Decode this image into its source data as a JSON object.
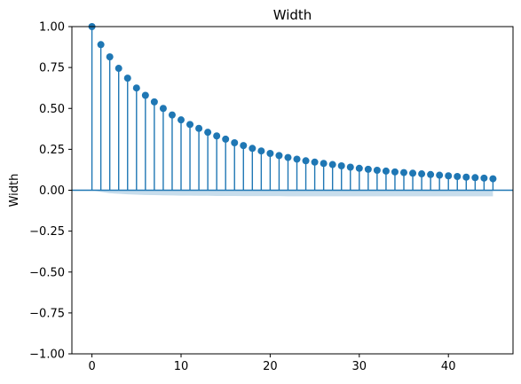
{
  "chart_data": {
    "type": "stem",
    "title": "Width",
    "ylabel": "Width",
    "xlabel": "",
    "xlim": [
      -2.25,
      47.25
    ],
    "ylim": [
      -1.0,
      1.0
    ],
    "xticks": [
      0,
      10,
      20,
      30,
      40
    ],
    "xtick_labels": [
      "0",
      "10",
      "20",
      "30",
      "40"
    ],
    "yticks": [
      -1.0,
      -0.75,
      -0.5,
      -0.25,
      0.0,
      0.25,
      0.5,
      0.75,
      1.0
    ],
    "ytick_labels": [
      "−1.00",
      "−0.75",
      "−0.50",
      "−0.25",
      "0.00",
      "0.25",
      "0.50",
      "0.75",
      "1.00"
    ],
    "grid": false,
    "x": [
      0,
      1,
      2,
      3,
      4,
      5,
      6,
      7,
      8,
      9,
      10,
      11,
      12,
      13,
      14,
      15,
      16,
      17,
      18,
      19,
      20,
      21,
      22,
      23,
      24,
      25,
      26,
      27,
      28,
      29,
      30,
      31,
      32,
      33,
      34,
      35,
      36,
      37,
      38,
      39,
      40,
      41,
      42,
      43,
      44,
      45
    ],
    "values": [
      1.0,
      0.89,
      0.815,
      0.745,
      0.685,
      0.625,
      0.58,
      0.54,
      0.5,
      0.46,
      0.43,
      0.402,
      0.378,
      0.354,
      0.332,
      0.312,
      0.29,
      0.273,
      0.256,
      0.24,
      0.225,
      0.212,
      0.2,
      0.19,
      0.18,
      0.172,
      0.164,
      0.157,
      0.149,
      0.141,
      0.134,
      0.128,
      0.122,
      0.117,
      0.112,
      0.108,
      0.104,
      0.1,
      0.096,
      0.092,
      0.088,
      0.084,
      0.08,
      0.077,
      0.074,
      0.07
    ],
    "confint_lower": [
      0,
      -0.01,
      -0.018,
      -0.022,
      -0.025,
      -0.027,
      -0.029,
      -0.03,
      -0.031,
      -0.032,
      -0.033,
      -0.033,
      -0.034,
      -0.034,
      -0.035,
      -0.035,
      -0.035,
      -0.036,
      -0.036,
      -0.036,
      -0.036,
      -0.036,
      -0.037,
      -0.037,
      -0.037,
      -0.037,
      -0.037,
      -0.037,
      -0.037,
      -0.037,
      -0.037,
      -0.037,
      -0.037,
      -0.037,
      -0.037,
      -0.037,
      -0.037,
      -0.037,
      -0.037,
      -0.037,
      -0.037,
      -0.037,
      -0.037,
      -0.037,
      -0.037,
      -0.037
    ],
    "colors": {
      "stem": "#1f77b4",
      "marker": "#1f77b4",
      "baseline": "#1f77b4",
      "confint": "#1f77b4"
    }
  }
}
